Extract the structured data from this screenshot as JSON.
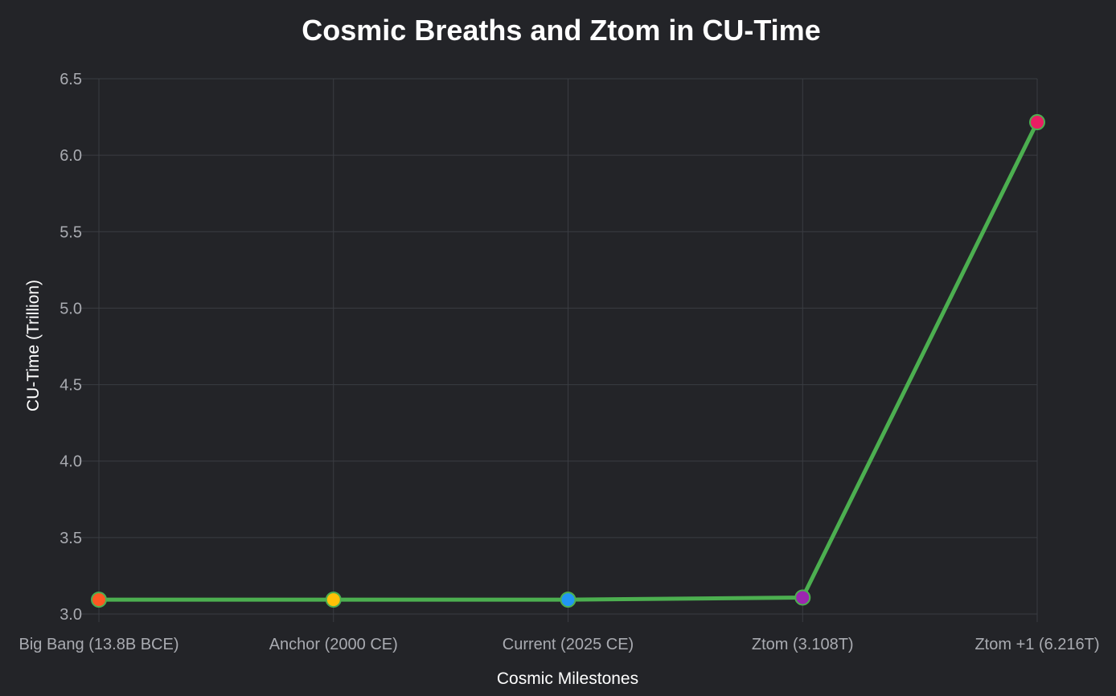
{
  "chart_data": {
    "type": "line",
    "title": "Cosmic Breaths and Ztom in CU-Time",
    "xlabel": "Cosmic Milestones",
    "ylabel": "CU-Time (Trillion)",
    "categories": [
      "Big Bang (13.8B BCE)",
      "Anchor (2000 CE)",
      "Current (2025 CE)",
      "Ztom (3.108T)",
      "Ztom +1 (6.216T)"
    ],
    "ylim": [
      3.0,
      6.5
    ],
    "yticks": [
      "3.0",
      "3.5",
      "4.0",
      "4.5",
      "5.0",
      "5.5",
      "6.0",
      "6.5"
    ],
    "grid": true,
    "legend": "none",
    "series": [
      {
        "values": [
          3.094,
          3.094,
          3.094,
          3.108,
          6.216
        ],
        "line_color": "#4caf50",
        "point_colors": [
          "#ff5722",
          "#ffc107",
          "#2196f3",
          "#9c27b0",
          "#e91e63"
        ],
        "point_border_color": "#4caf50"
      }
    ]
  }
}
